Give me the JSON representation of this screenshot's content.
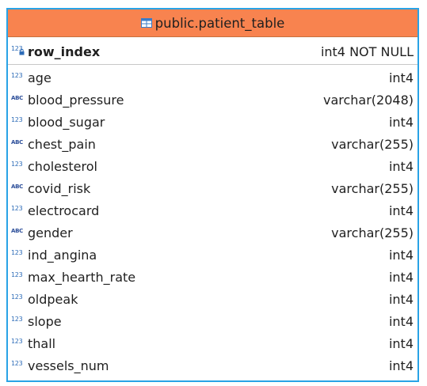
{
  "table": {
    "title": "public.patient_table",
    "primary_key": {
      "name": "row_index",
      "type": "int4 NOT NULL",
      "icon": "int-key-icon"
    },
    "columns": [
      {
        "name": "age",
        "type": "int4",
        "icon": "int-icon"
      },
      {
        "name": "blood_pressure",
        "type": "varchar(2048)",
        "icon": "abc-icon"
      },
      {
        "name": "blood_sugar",
        "type": "int4",
        "icon": "int-icon"
      },
      {
        "name": "chest_pain",
        "type": "varchar(255)",
        "icon": "abc-icon"
      },
      {
        "name": "cholesterol",
        "type": "int4",
        "icon": "int-icon"
      },
      {
        "name": "covid_risk",
        "type": "varchar(255)",
        "icon": "abc-icon"
      },
      {
        "name": "electrocard",
        "type": "int4",
        "icon": "int-icon"
      },
      {
        "name": "gender",
        "type": "varchar(255)",
        "icon": "abc-icon"
      },
      {
        "name": "ind_angina",
        "type": "int4",
        "icon": "int-icon"
      },
      {
        "name": "max_hearth_rate",
        "type": "int4",
        "icon": "int-icon"
      },
      {
        "name": "oldpeak",
        "type": "int4",
        "icon": "int-icon"
      },
      {
        "name": "slope",
        "type": "int4",
        "icon": "int-icon"
      },
      {
        "name": "thall",
        "type": "int4",
        "icon": "int-icon"
      },
      {
        "name": "vessels_num",
        "type": "int4",
        "icon": "int-icon"
      }
    ]
  },
  "icon_text": {
    "int": "123",
    "abc": "ABC"
  },
  "colors": {
    "header_bg": "#f8834f",
    "border": "#29a3e6",
    "icon_blue": "#2d6cb8"
  }
}
